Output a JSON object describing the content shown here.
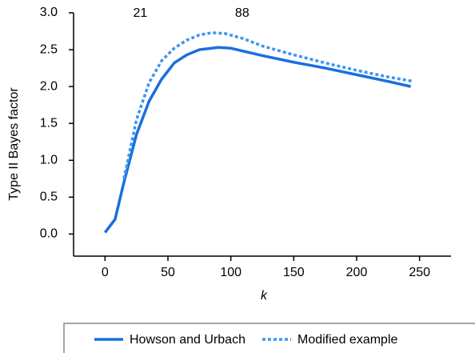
{
  "chart_data": {
    "type": "line",
    "xlabel": "k",
    "ylabel": "Type II Bayes factor",
    "annotations": [
      {
        "text": "21",
        "x": 28
      },
      {
        "text": "88",
        "x": 109
      }
    ],
    "xlim": [
      -25,
      275
    ],
    "xticks": [
      0,
      50,
      100,
      150,
      200,
      250
    ],
    "ylim": [
      -0.3,
      3.0
    ],
    "yticks": [
      {
        "value": 0,
        "label": "0.0"
      },
      0.5,
      {
        "value": 1,
        "label": "1.0"
      },
      1.5,
      {
        "value": 2,
        "label": "2.0"
      },
      2.5,
      {
        "value": 3,
        "label": "3.0"
      }
    ],
    "series": [
      {
        "name": "Howson and Urbach",
        "color": "#1a6fe0",
        "dash": "solid",
        "x": [
          0,
          8,
          15,
          25,
          35,
          45,
          55,
          65,
          75,
          90,
          100,
          110,
          125,
          150,
          175,
          200,
          225,
          243
        ],
        "values": [
          0.02,
          0.2,
          0.7,
          1.35,
          1.8,
          2.1,
          2.32,
          2.43,
          2.5,
          2.53,
          2.52,
          2.48,
          2.42,
          2.33,
          2.25,
          2.16,
          2.07,
          2.0
        ]
      },
      {
        "name": "Modified example",
        "color": "#3d95f0",
        "dash": "dotted",
        "x": [
          15,
          25,
          35,
          45,
          55,
          65,
          75,
          85,
          95,
          110,
          125,
          150,
          175,
          200,
          225,
          245
        ],
        "values": [
          0.75,
          1.55,
          2.05,
          2.35,
          2.52,
          2.63,
          2.7,
          2.73,
          2.72,
          2.65,
          2.55,
          2.43,
          2.32,
          2.22,
          2.13,
          2.07
        ]
      }
    ]
  }
}
